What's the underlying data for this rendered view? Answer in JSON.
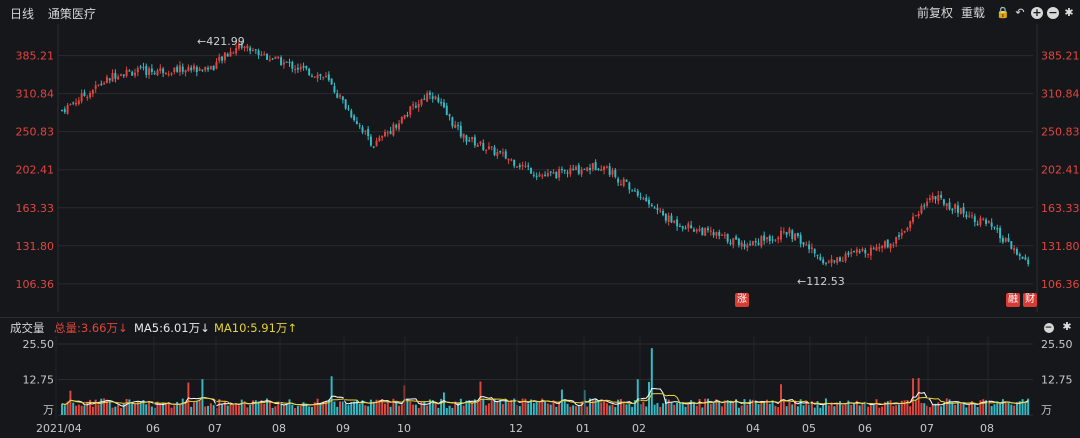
{
  "toolbar": {
    "period": "日线",
    "stock_name": "通策医疗",
    "adjust_label": "前复权",
    "reload_label": "重载",
    "icons": [
      "lock-icon",
      "undo-icon",
      "zoom-in-icon",
      "zoom-out-icon",
      "settings-icon"
    ]
  },
  "colors": {
    "up": "#e0463e",
    "down": "#35b9c3",
    "ma5": "#ffffff",
    "ma10": "#e5d23a",
    "bg": "#16171b",
    "grid": "#2a2b31"
  },
  "price_axis": {
    "ticks": [
      "385.21",
      "310.84",
      "250.83",
      "202.41",
      "163.33",
      "131.80",
      "106.36"
    ]
  },
  "annotations": {
    "high": "←421.99",
    "low": "←112.53"
  },
  "badges": {
    "rise": "涨",
    "rong": "融",
    "cai": "财"
  },
  "volume_panel": {
    "title": "成交量",
    "total": "总量:3.66万↓",
    "ma5": "MA5:6.01万↓",
    "ma10": "MA10:5.91万↑",
    "axis_ticks": [
      "25.50",
      "12.75",
      "万"
    ]
  },
  "x_axis": {
    "labels": [
      "2021/04",
      "06",
      "07",
      "08",
      "09",
      "10",
      "12",
      "01",
      "02",
      "04",
      "05",
      "06",
      "07",
      "08"
    ]
  },
  "chart_data": {
    "type": "candlestick",
    "title": "",
    "price_scale": "log",
    "ylim": [
      96,
      445
    ],
    "series": [
      {
        "name": "price_anchors",
        "dates": [
          "2021-04-01",
          "2021-05-01",
          "2021-06-20",
          "2021-07-05",
          "2021-07-25",
          "2021-08-20",
          "2021-09-15",
          "2021-10-15",
          "2021-11-01",
          "2021-12-15",
          "2022-01-15",
          "2022-02-20",
          "2022-04-01",
          "2022-04-25",
          "2022-05-15",
          "2022-06-20",
          "2022-07-10",
          "2022-08-10",
          "2022-08-31"
        ],
        "close": [
          283,
          350,
          360,
          410,
          375,
          340,
          232,
          315,
          245,
          195,
          208,
          152,
          133,
          142,
          120,
          135,
          175,
          148,
          118
        ]
      }
    ],
    "high_mark": 421.99,
    "low_mark": 112.53,
    "volume_ylim": [
      0,
      25.5
    ],
    "volume_unit": "万"
  }
}
